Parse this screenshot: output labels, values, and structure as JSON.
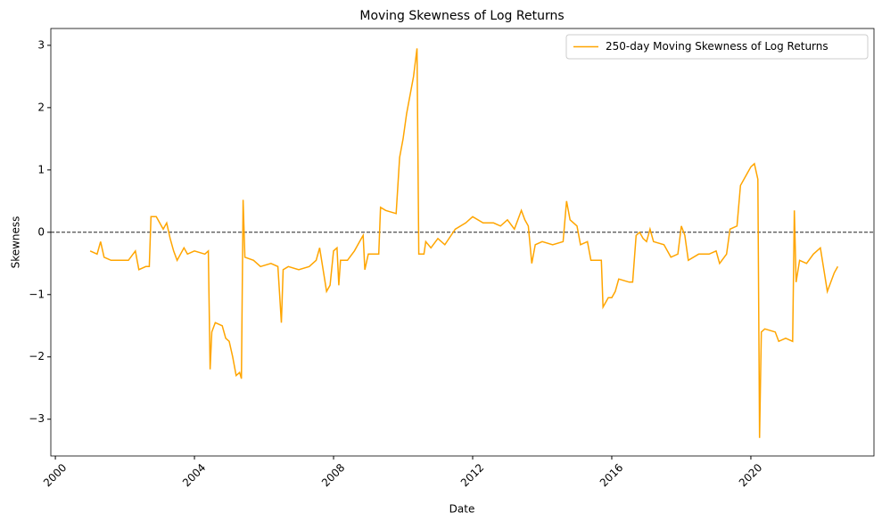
{
  "chart_data": {
    "type": "line",
    "title": "Moving Skewness of Log Returns",
    "x_label": "Date",
    "y_label": "Skewness",
    "x": [
      2001.0,
      2001.2,
      2001.3,
      2001.4,
      2001.6,
      2001.9,
      2002.1,
      2002.3,
      2002.4,
      2002.6,
      2002.7,
      2002.75,
      2002.9,
      2003.0,
      2003.1,
      2003.2,
      2003.3,
      2003.4,
      2003.5,
      2003.7,
      2003.8,
      2004.0,
      2004.3,
      2004.4,
      2004.45,
      2004.5,
      2004.6,
      2004.8,
      2004.9,
      2005.0,
      2005.1,
      2005.2,
      2005.3,
      2005.35,
      2005.4,
      2005.45,
      2005.7,
      2005.9,
      2006.2,
      2006.4,
      2006.5,
      2006.55,
      2006.7,
      2007.0,
      2007.3,
      2007.5,
      2007.6,
      2007.7,
      2007.8,
      2007.9,
      2008.0,
      2008.1,
      2008.15,
      2008.2,
      2008.4,
      2008.6,
      2008.8,
      2008.85,
      2008.9,
      2009.0,
      2009.3,
      2009.35,
      2009.5,
      2009.8,
      2009.9,
      2010.0,
      2010.1,
      2010.3,
      2010.4,
      2010.45,
      2010.6,
      2010.65,
      2010.8,
      2011.0,
      2011.2,
      2011.5,
      2011.8,
      2012.0,
      2012.3,
      2012.6,
      2012.8,
      2013.0,
      2013.2,
      2013.4,
      2013.5,
      2013.6,
      2013.7,
      2013.8,
      2014.0,
      2014.3,
      2014.6,
      2014.7,
      2014.8,
      2015.0,
      2015.1,
      2015.3,
      2015.4,
      2015.7,
      2015.75,
      2015.9,
      2016.0,
      2016.1,
      2016.2,
      2016.5,
      2016.6,
      2016.7,
      2016.8,
      2016.9,
      2017.0,
      2017.1,
      2017.2,
      2017.5,
      2017.7,
      2017.9,
      2018.0,
      2018.1,
      2018.2,
      2018.5,
      2018.8,
      2019.0,
      2019.1,
      2019.3,
      2019.4,
      2019.6,
      2019.7,
      2019.9,
      2020.0,
      2020.1,
      2020.2,
      2020.25,
      2020.3,
      2020.4,
      2020.7,
      2020.8,
      2021.0,
      2021.2,
      2021.25,
      2021.3,
      2021.4,
      2021.6,
      2021.8,
      2022.0,
      2022.1,
      2022.2,
      2022.3,
      2022.4,
      2022.5
    ],
    "series": [
      {
        "name": "250-day Moving Skewness of Log Returns",
        "color": "#ffa500",
        "values": [
          -0.3,
          -0.35,
          -0.15,
          -0.4,
          -0.45,
          -0.45,
          -0.45,
          -0.3,
          -0.6,
          -0.55,
          -0.55,
          0.25,
          0.25,
          0.15,
          0.05,
          0.15,
          -0.1,
          -0.3,
          -0.45,
          -0.25,
          -0.35,
          -0.3,
          -0.35,
          -0.3,
          -2.2,
          -1.6,
          -1.45,
          -1.5,
          -1.7,
          -1.75,
          -2.0,
          -2.3,
          -2.25,
          -2.35,
          0.52,
          -0.4,
          -0.45,
          -0.55,
          -0.5,
          -0.55,
          -1.45,
          -0.6,
          -0.55,
          -0.6,
          -0.55,
          -0.45,
          -0.25,
          -0.6,
          -0.95,
          -0.85,
          -0.3,
          -0.25,
          -0.85,
          -0.45,
          -0.45,
          -0.3,
          -0.1,
          -0.05,
          -0.6,
          -0.35,
          -0.35,
          0.4,
          0.35,
          0.3,
          1.2,
          1.5,
          1.9,
          2.5,
          2.95,
          -0.35,
          -0.35,
          -0.15,
          -0.25,
          -0.1,
          -0.2,
          0.05,
          0.15,
          0.25,
          0.15,
          0.15,
          0.1,
          0.2,
          0.05,
          0.35,
          0.2,
          0.1,
          -0.5,
          -0.2,
          -0.15,
          -0.2,
          -0.15,
          0.5,
          0.2,
          0.1,
          -0.2,
          -0.15,
          -0.45,
          -0.45,
          -1.2,
          -1.05,
          -1.05,
          -0.95,
          -0.75,
          -0.8,
          -0.8,
          -0.05,
          0.0,
          -0.1,
          -0.15,
          0.05,
          -0.15,
          -0.2,
          -0.4,
          -0.35,
          0.1,
          -0.05,
          -0.45,
          -0.35,
          -0.35,
          -0.3,
          -0.5,
          -0.35,
          0.05,
          0.1,
          0.75,
          0.95,
          1.05,
          1.1,
          0.85,
          -3.3,
          -1.6,
          -1.55,
          -1.6,
          -1.75,
          -1.7,
          -1.75,
          0.35,
          -0.8,
          -0.45,
          -0.5,
          -0.35,
          -0.25,
          -0.6,
          -0.95,
          -0.8,
          -0.65,
          -0.55
        ]
      }
    ],
    "hline": 0,
    "xlim": [
      1999.87,
      2023.54
    ],
    "ylim": [
      -3.59,
      3.27
    ],
    "xticks": [
      2000,
      2004,
      2008,
      2012,
      2016,
      2020
    ],
    "yticks": [
      {
        "value": -3,
        "label": "−3"
      },
      {
        "value": -2,
        "label": "−2"
      },
      {
        "value": -1,
        "label": "−1"
      },
      0,
      1,
      2,
      3
    ],
    "legend": "upper right"
  }
}
